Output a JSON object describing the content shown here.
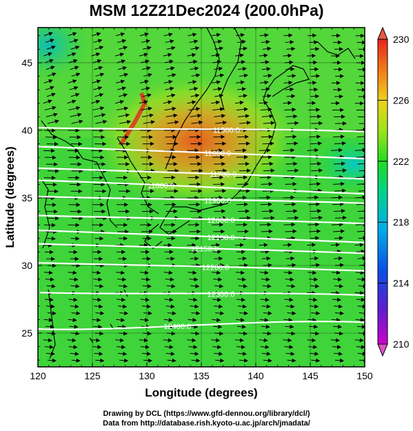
{
  "title": "MSM 12Z21Dec2024 (200.0hPa)",
  "xlabel": "Longitude (degrees)",
  "ylabel": "Latitude  (degrees)",
  "footer_line1": "Drawing by DCL (https://www.gfd-dennou.org/library/dcl/)",
  "footer_line2": "Data from http://database.rish.kyoto-u.ac.jp/arch/jmadata/",
  "map_data": {
    "lon_range": [
      120,
      150
    ],
    "lat_range": [
      22.5,
      47.6
    ],
    "lon_ticks": [
      "120",
      "125",
      "130",
      "135",
      "140",
      "145",
      "150"
    ],
    "lat_ticks": [
      "25",
      "30",
      "35",
      "40",
      "45"
    ],
    "colorbar": {
      "min": 210,
      "max": 230,
      "tick_labels": [
        "230",
        "226",
        "222",
        "218",
        "214",
        "210"
      ],
      "colors": [
        "#cc00cc",
        "#3b2fd0",
        "#0b62e8",
        "#00c2d8",
        "#00d65a",
        "#2ae020",
        "#b5e614",
        "#f2c21c",
        "#f26a1a",
        "#e6261e"
      ]
    },
    "contours": [
      {
        "value": 11500.0,
        "label": "11500.0",
        "lat_start": 40.2,
        "lat_end": 39.9,
        "label_lon": 137.3
      },
      {
        "value": 11600.0,
        "label": "11600.0",
        "lat_start": 38.8,
        "lat_end": 37.9,
        "label_lon": 136.5
      },
      {
        "value": 11700.0,
        "label": "11700.0",
        "lat_start": 37.2,
        "lat_end": 36.4,
        "label_lon": 137.0
      },
      {
        "value": 11800.0,
        "label": "11800.0",
        "lat_start": 36.3,
        "lat_end": 35.3,
        "label_lon": 131.3
      },
      {
        "value": 11900.0,
        "label": "11900.0",
        "lat_start": 35.1,
        "lat_end": 34.6,
        "label_lon": 136.5
      },
      {
        "value": 12000.0,
        "label": "12000.0",
        "lat_start": 33.7,
        "lat_end": 33.1,
        "label_lon": 136.8
      },
      {
        "value": 12100.0,
        "label": "12100.0",
        "lat_start": 32.6,
        "lat_end": 31.7,
        "label_lon": 136.8
      },
      {
        "value": 12150.0,
        "label": "12150.0",
        "lat_start": 31.6,
        "lat_end": 30.9,
        "label_lon": 135.3
      },
      {
        "value": 12200.0,
        "label": "12200.0",
        "lat_start": 30.2,
        "lat_end": 29.6,
        "label_lon": 136.3
      },
      {
        "value": 12300.0,
        "label": "12300.0",
        "lat_start": 28.0,
        "lat_end": 27.8,
        "label_lon": 136.8
      },
      {
        "value": 12400.0,
        "label": "12400.0",
        "lat_start": 25.3,
        "lat_end": 25.8,
        "label_lon": 132.8
      }
    ],
    "warm_core": {
      "lon": 134.5,
      "lat": 39.2
    },
    "cool_spot": {
      "lon": 149.0,
      "lat": 37.5
    },
    "wind_direction": "westerly"
  }
}
